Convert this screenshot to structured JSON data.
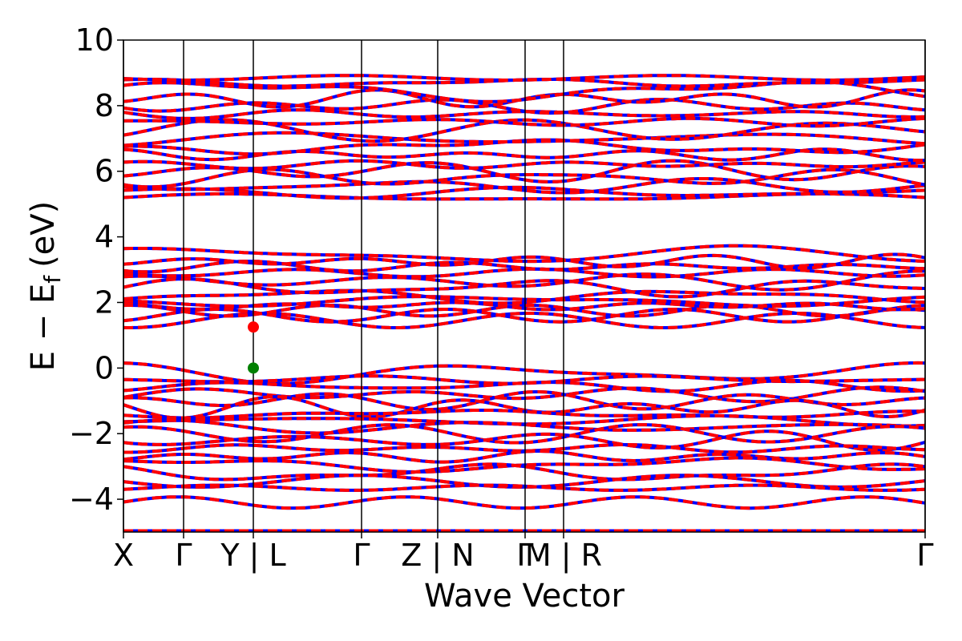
{
  "chart_data": {
    "type": "line",
    "title": "",
    "xlabel": "Wave Vector",
    "ylabel_main": "E − E",
    "ylabel_sub": "f",
    "ylabel_unit": "(eV)",
    "ylim": [
      -5,
      10
    ],
    "y_ticks": [
      -4,
      -2,
      0,
      2,
      4,
      6,
      8,
      10
    ],
    "y_tick_labels": [
      "−4",
      "−2",
      "0",
      "2",
      "4",
      "6",
      "8",
      "10"
    ],
    "x_range": [
      0,
      1
    ],
    "kpath_ticks": [
      {
        "x": 0.0,
        "label": "X"
      },
      {
        "x": 0.075,
        "label": "Γ"
      },
      {
        "x": 0.162,
        "label": "Y | L"
      },
      {
        "x": 0.297,
        "label": "Γ"
      },
      {
        "x": 0.392,
        "label": "Z | N"
      },
      {
        "x": 0.501,
        "label": "Γ"
      },
      {
        "x": 0.549,
        "label": "M | R"
      },
      {
        "x": 1.0,
        "label": "Γ"
      }
    ],
    "grid": false,
    "legend": "none",
    "series_colors": {
      "spin_up": "#0000ff",
      "spin_down": "#ff0000"
    },
    "bands": {
      "conduction_upper_edges_eV": [
        5.2,
        5.35,
        5.55,
        5.8,
        6.0,
        6.2,
        6.5,
        6.75,
        7.0,
        7.25,
        7.5,
        7.75,
        8.0,
        8.2,
        8.45,
        8.7,
        8.85
      ],
      "conduction_lower_edges_eV": [
        1.45,
        1.6,
        1.75,
        1.9,
        2.05,
        2.2,
        2.45,
        2.65,
        2.9,
        3.1,
        3.25,
        3.45
      ],
      "valence_edges_eV": [
        -0.15,
        -0.35,
        -0.55,
        -0.8,
        -1.0,
        -1.2,
        -1.4,
        -1.6,
        -1.8,
        -2.0,
        -2.2,
        -2.45,
        -2.7,
        -2.95,
        -3.2,
        -3.45,
        -3.65,
        -4.1
      ],
      "deep_band_eV": -4.95
    },
    "markers": [
      {
        "name": "CBM",
        "x": 0.162,
        "y": 1.25,
        "color": "#ff0000"
      },
      {
        "name": "VBM",
        "x": 0.162,
        "y": 0.0,
        "color": "#008000"
      }
    ]
  }
}
